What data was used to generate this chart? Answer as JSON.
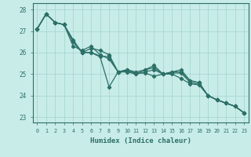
{
  "xlabel": "Humidex (Indice chaleur)",
  "bg_color": "#c8ece8",
  "line_color": "#2d7068",
  "grid_color": "#a0d4cc",
  "xlim": [
    -0.5,
    23.5
  ],
  "ylim": [
    22.75,
    28.3
  ],
  "yticks": [
    23,
    24,
    25,
    26,
    27,
    28
  ],
  "xticks": [
    0,
    1,
    2,
    3,
    4,
    5,
    6,
    7,
    8,
    9,
    10,
    11,
    12,
    13,
    14,
    15,
    16,
    17,
    18,
    19,
    20,
    21,
    22,
    23
  ],
  "series": [
    [
      27.1,
      27.8,
      27.4,
      27.3,
      26.5,
      26.0,
      26.2,
      26.1,
      25.9,
      25.1,
      25.2,
      25.1,
      25.2,
      25.4,
      25.0,
      25.1,
      25.1,
      24.7,
      24.6,
      24.0,
      23.8,
      23.65,
      23.5,
      23.2
    ],
    [
      27.1,
      27.8,
      27.4,
      27.3,
      26.3,
      26.1,
      26.3,
      25.9,
      25.7,
      25.1,
      25.15,
      25.05,
      25.05,
      24.9,
      25.0,
      25.0,
      24.8,
      24.55,
      24.5,
      24.0,
      23.8,
      23.65,
      23.5,
      23.2
    ],
    [
      27.1,
      27.8,
      27.4,
      27.3,
      26.5,
      26.0,
      26.0,
      25.85,
      25.8,
      25.1,
      25.1,
      25.0,
      25.1,
      25.2,
      25.0,
      25.05,
      25.05,
      24.62,
      24.52,
      24.0,
      23.8,
      23.65,
      23.5,
      23.2
    ],
    [
      27.1,
      27.8,
      27.4,
      27.3,
      26.6,
      26.0,
      26.0,
      25.8,
      24.4,
      25.1,
      25.2,
      25.0,
      25.2,
      25.3,
      25.0,
      25.1,
      25.2,
      24.7,
      24.6,
      24.0,
      23.8,
      23.65,
      23.5,
      23.2
    ]
  ],
  "spine_color": "#2d7068",
  "tick_color": "#2d7068",
  "xlabel_fontsize": 6.5,
  "ytick_fontsize": 5.5,
  "xtick_fontsize": 4.8,
  "linewidth": 0.9,
  "markersize": 2.2
}
